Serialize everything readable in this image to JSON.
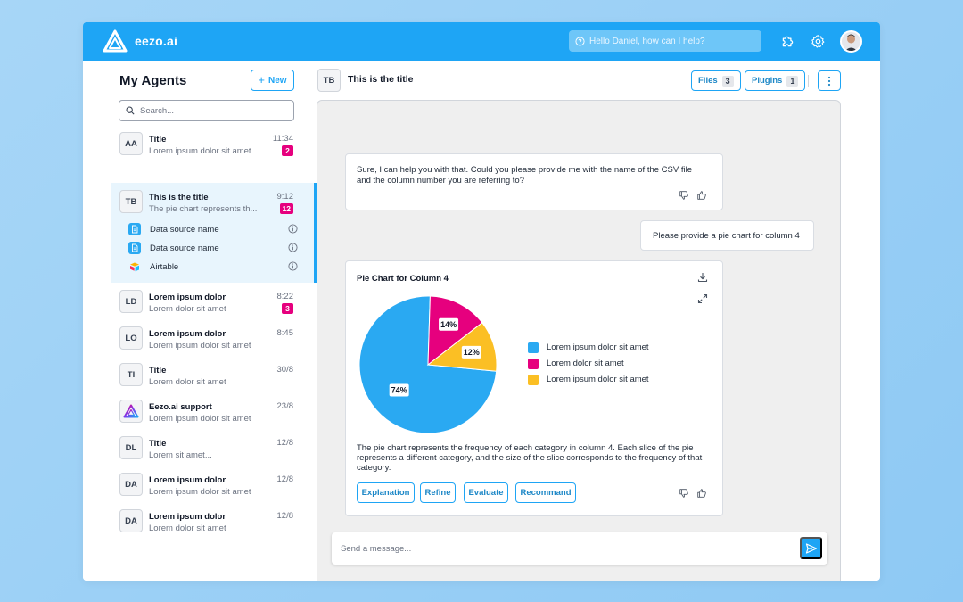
{
  "app": {
    "name": "eezo.ai"
  },
  "top": {
    "search_placeholder": "Hello Daniel, how can I help?",
    "icons": [
      "search-icon",
      "puzzle-icon",
      "gear-icon",
      "avatar"
    ]
  },
  "sidebar": {
    "title": "My Agents",
    "new_label": "New",
    "search_placeholder": "Search...",
    "agents": [
      {
        "badge": "AA",
        "title": "Title",
        "subtitle": "Lorem ipsum dolor sit amet",
        "time": "11:34",
        "count": "2"
      },
      {
        "badge": "TB",
        "title": "This is the title",
        "subtitle": "The pie chart represents th...",
        "time": "9:12",
        "count": "12",
        "sources": [
          {
            "label": "Data source name",
            "icon": "document-icon"
          },
          {
            "label": "Data source name",
            "icon": "document-icon"
          },
          {
            "label": "Airtable",
            "icon": "airtable-icon"
          }
        ]
      },
      {
        "badge": "LD",
        "title": "Lorem ipsum dolor",
        "subtitle": "Lorem dolor sit amet",
        "time": "8:22",
        "count": "3"
      },
      {
        "badge": "LO",
        "title": "Lorem ipsum dolor",
        "subtitle": "Lorem ipsum dolor sit amet",
        "time": "8:45"
      },
      {
        "badge": "TI",
        "title": "Title",
        "subtitle": "Lorem dolor sit amet",
        "time": "30/8"
      },
      {
        "badge": "",
        "title": "Eezo.ai support",
        "subtitle": "Lorem ipsum dolor sit amet",
        "time": "23/8"
      },
      {
        "badge": "DL",
        "title": "Title",
        "subtitle": "Lorem sit amet...",
        "time": "12/8"
      },
      {
        "badge": "DA",
        "title": "Lorem ipsum dolor",
        "subtitle": "Lorem ipsum dolor sit amet",
        "time": "12/8"
      },
      {
        "badge": "DA",
        "title": "Lorem ipsum dolor",
        "subtitle": "Lorem dolor sit amet",
        "time": "12/8"
      }
    ]
  },
  "main": {
    "badge": "TB",
    "title": "This is the title",
    "files_label": "Files",
    "files_count": "3",
    "plugins_label": "Plugins",
    "plugins_count": "1",
    "messages": {
      "assistant_1": "Sure, I can help you with that. Could you please provide me with the name of the CSV file and the column number you are referring to?",
      "user_1": "Please provide a pie chart for column 4",
      "description": "The pie chart represents the frequency of each category in column 4. Each slice of the pie represents a different category, and the size of the slice corresponds to the frequency of that category."
    },
    "actions": [
      "Explanation",
      "Refine",
      "Evaluate",
      "Recommand"
    ],
    "composer_placeholder": "Send a message..."
  },
  "chart_data": {
    "type": "pie",
    "title": "Pie Chart for Column 4",
    "slices": [
      {
        "label": "Lorem ipsum dolor sit amet",
        "value": 74,
        "display": "74%",
        "color": "#2aa9f2"
      },
      {
        "label": "Lorem dolor sit amet",
        "value": 14,
        "display": "14%",
        "color": "#e6007e"
      },
      {
        "label": "Lorem ipsum dolor sit amet",
        "value": 12,
        "display": "12%",
        "color": "#fbbf24"
      }
    ],
    "legend_position": "right"
  }
}
